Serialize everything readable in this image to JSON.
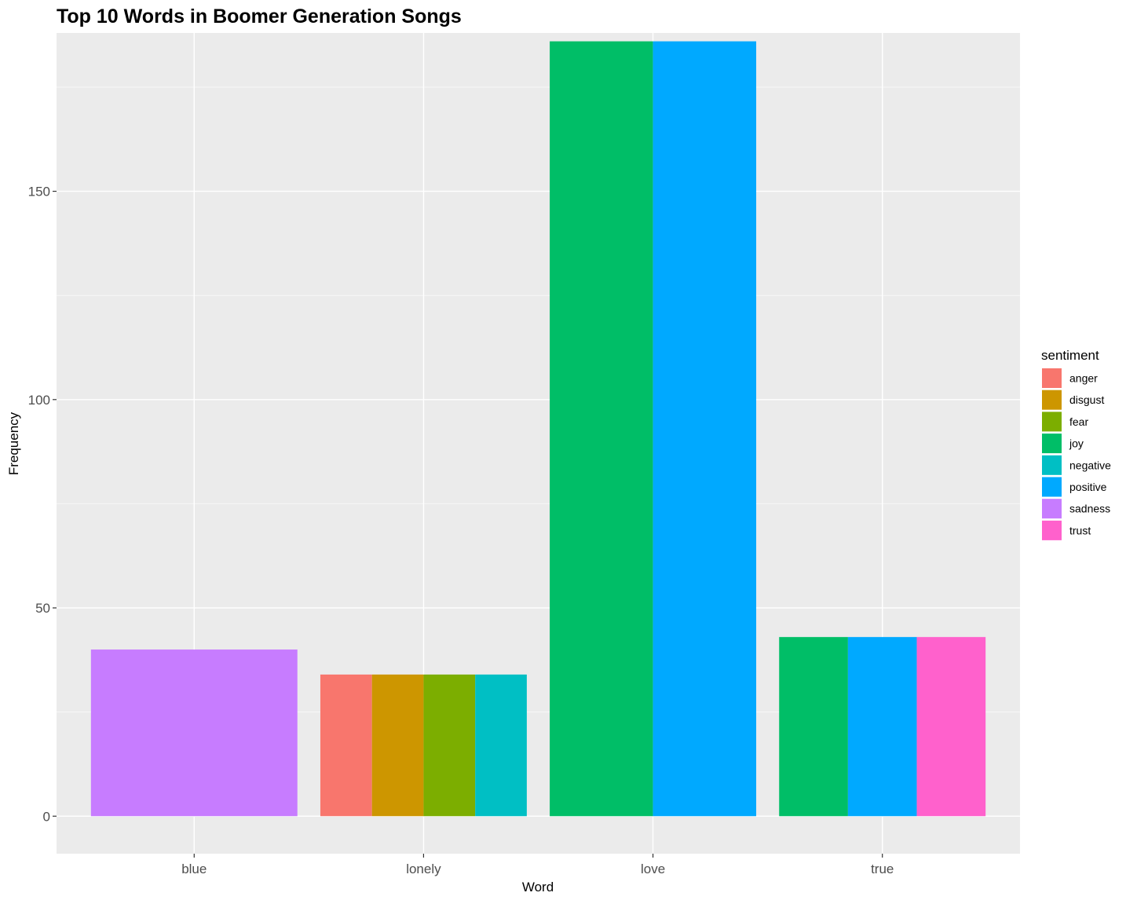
{
  "chart_data": {
    "type": "bar",
    "title": "Top 10 Words in Boomer Generation Songs",
    "xlabel": "Word",
    "ylabel": "Frequency",
    "ylim": [
      -9,
      188
    ],
    "y_ticks": [
      0,
      50,
      100,
      150
    ],
    "position": "dodge",
    "grid": true,
    "legend_position": "right",
    "legend_title": "sentiment",
    "categories": [
      "blue",
      "lonely",
      "love",
      "true"
    ],
    "sentiments": [
      {
        "name": "anger",
        "color": "#F8766D"
      },
      {
        "name": "disgust",
        "color": "#CD9600"
      },
      {
        "name": "fear",
        "color": "#7CAE00"
      },
      {
        "name": "joy",
        "color": "#00BE67"
      },
      {
        "name": "negative",
        "color": "#00BFC4"
      },
      {
        "name": "positive",
        "color": "#00A9FF"
      },
      {
        "name": "sadness",
        "color": "#C77CFF"
      },
      {
        "name": "trust",
        "color": "#FF61CC"
      }
    ],
    "bars": [
      {
        "word": "blue",
        "sentiment": "sadness",
        "value": 40
      },
      {
        "word": "lonely",
        "sentiment": "anger",
        "value": 34
      },
      {
        "word": "lonely",
        "sentiment": "disgust",
        "value": 34
      },
      {
        "word": "lonely",
        "sentiment": "fear",
        "value": 34
      },
      {
        "word": "lonely",
        "sentiment": "negative",
        "value": 34
      },
      {
        "word": "love",
        "sentiment": "joy",
        "value": 186
      },
      {
        "word": "love",
        "sentiment": "positive",
        "value": 186
      },
      {
        "word": "true",
        "sentiment": "joy",
        "value": 43
      },
      {
        "word": "true",
        "sentiment": "positive",
        "value": 43
      },
      {
        "word": "true",
        "sentiment": "trust",
        "value": 43
      }
    ]
  },
  "colors": {
    "panel_background": "#EBEBEB",
    "grid_major": "#FFFFFF",
    "grid_minor": "#F7F7F7"
  }
}
